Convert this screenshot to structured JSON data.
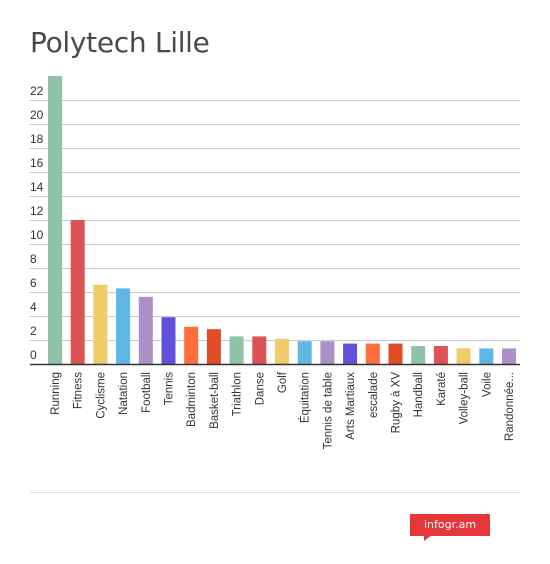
{
  "title": "Polytech Lille",
  "brand": "infogr.am",
  "colors": {
    "palette": [
      "#8ec3a7",
      "#dc5356",
      "#f0cb69",
      "#5fb7e5",
      "#ab91c5",
      "#6050dc",
      "#ff6e3a",
      "#e04b28",
      "#8ec3a7",
      "#dc5356",
      "#f0cb69",
      "#5fb7e5",
      "#ab91c5",
      "#6050dc",
      "#ff6e3a",
      "#e04b28",
      "#8ec3a7",
      "#dc5356",
      "#f0cb69",
      "#5fb7e5",
      "#ab91c5"
    ],
    "grid": "#cccccc",
    "axis": "#333333",
    "text": "#333333"
  },
  "chart_data": {
    "type": "bar",
    "title": "Polytech Lille",
    "xlabel": "",
    "ylabel": "",
    "ylim": [
      0,
      24
    ],
    "yticks": [
      0,
      2,
      4,
      6,
      8,
      10,
      12,
      14,
      16,
      18,
      20,
      22
    ],
    "grid": true,
    "categories": [
      "Running",
      "Fitness",
      "Cyclisme",
      "Natation",
      "Football",
      "Tennis",
      "Badminton",
      "Basket-ball",
      "Triathlon",
      "Danse",
      "Golf",
      "Équitation",
      "Tennis de table",
      "Arts Martiaux",
      "escalade",
      "Rugby à XV",
      "Handball",
      "Karaté",
      "Volley-ball",
      "Voile",
      "Randonnée..."
    ],
    "values": [
      24,
      12,
      6.6,
      6.3,
      5.6,
      3.9,
      3.1,
      2.9,
      2.3,
      2.3,
      2.1,
      1.9,
      1.9,
      1.7,
      1.7,
      1.7,
      1.5,
      1.5,
      1.3,
      1.3,
      1.3
    ]
  }
}
